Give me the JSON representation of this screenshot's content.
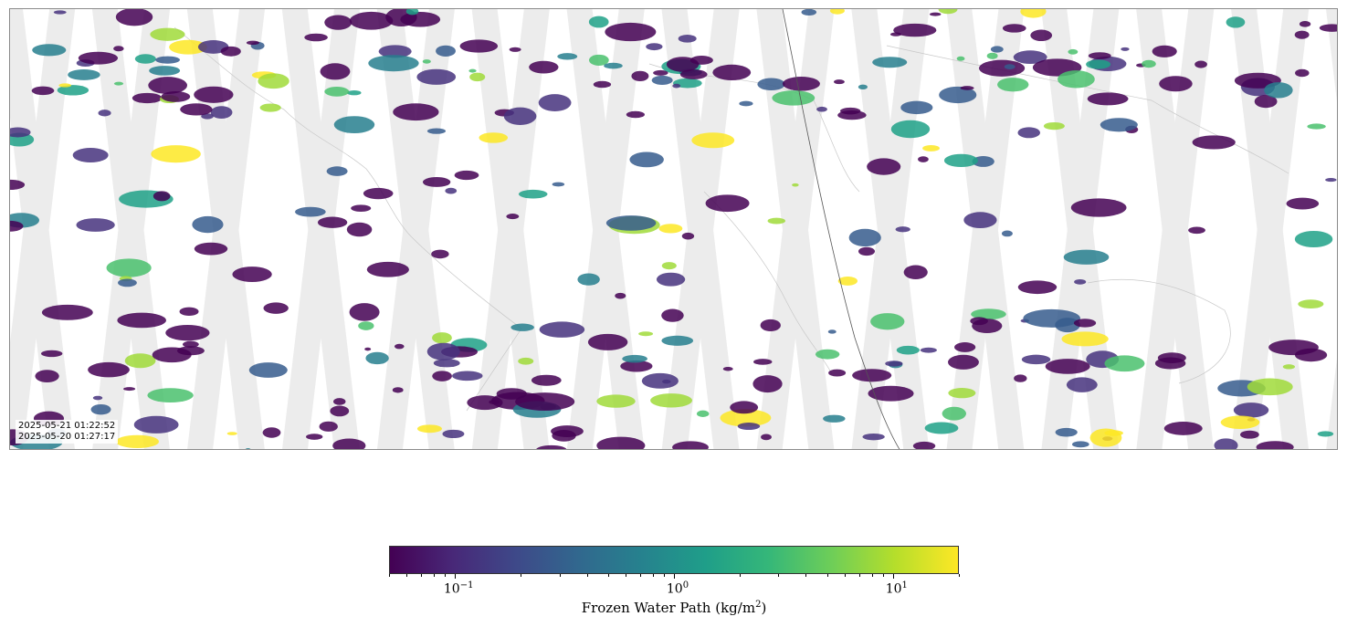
{
  "map": {
    "projection": "equirectangular global",
    "swath_gap_color": "#ececec",
    "coastline_color": "#c8c8c8",
    "orbit_line_color": "#555555",
    "has_orbit_line": true
  },
  "timestamps": {
    "line1": "2025-05-21 01:22:52",
    "line2": "2025-05-20 01:27:17"
  },
  "colorbar": {
    "title_text": "Frozen Water Path (kg/m",
    "title_sup": "2",
    "title_close": ")",
    "scale": "log",
    "range": [
      0.05,
      20
    ],
    "colormap": "viridis",
    "ticks": [
      {
        "base": "10",
        "exp": "−1",
        "value": 0.1
      },
      {
        "base": "10",
        "exp": "0",
        "value": 1
      },
      {
        "base": "10",
        "exp": "1",
        "value": 10
      }
    ]
  }
}
